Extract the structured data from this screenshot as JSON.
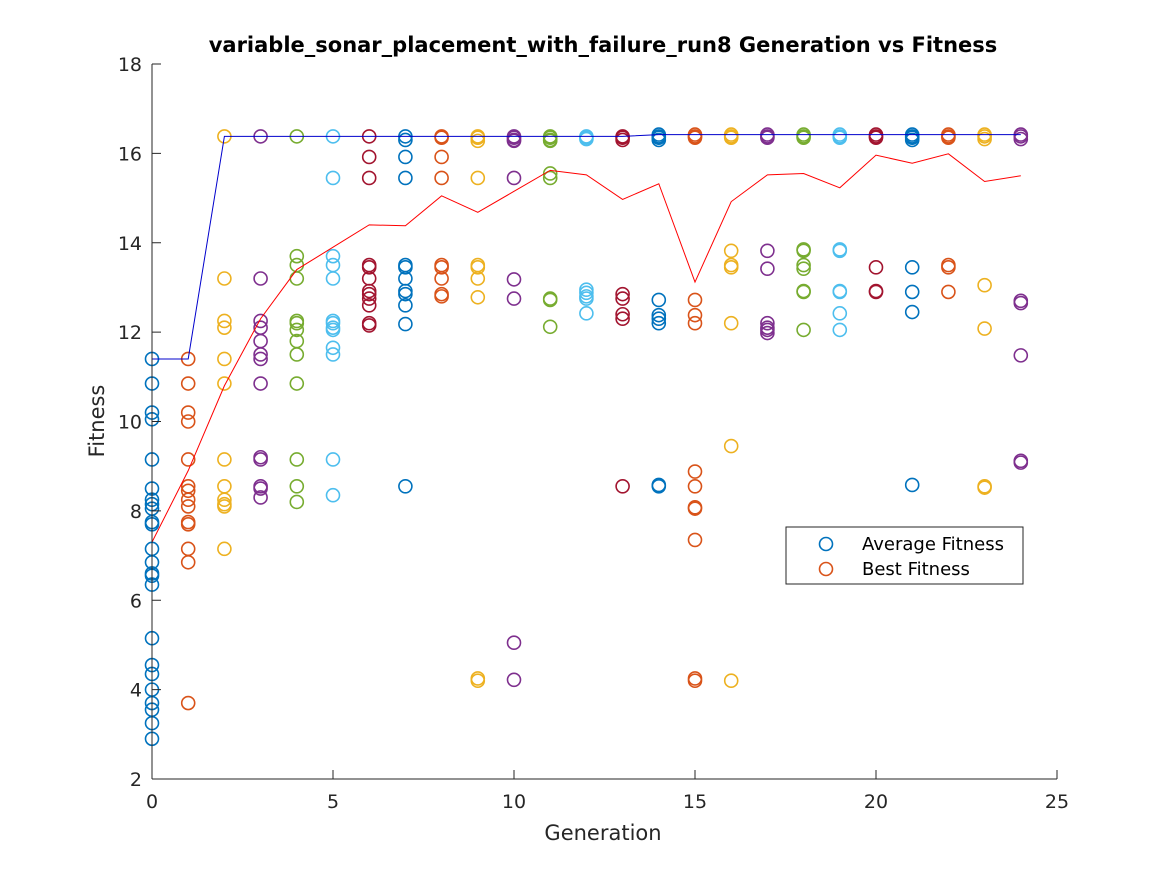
{
  "chart_data": {
    "type": "scatter",
    "title": "variable_sonar_placement_with_failure_run8 Generation vs Fitness",
    "xlabel": "Generation",
    "ylabel": "Fitness",
    "xlim": [
      0,
      25
    ],
    "ylim": [
      2,
      18
    ],
    "xticks": [
      0,
      5,
      10,
      15,
      20,
      25
    ],
    "yticks": [
      2,
      4,
      6,
      8,
      10,
      12,
      14,
      16,
      18
    ],
    "grid": false,
    "legend_position": "right",
    "legend": [
      {
        "label": "Average Fitness",
        "color": "#0072BD"
      },
      {
        "label": "Best Fitness",
        "color": "#D95319"
      }
    ],
    "generation_colors": [
      "#0072BD",
      "#D95319",
      "#EDB120",
      "#7E2F8E",
      "#77AC30",
      "#4DBEEE",
      "#A2142F"
    ],
    "population": [
      {
        "generation": 0,
        "fitness": [
          11.4,
          10.85,
          10.2,
          10.05,
          9.15,
          8.5,
          8.25,
          8.15,
          8.05,
          7.75,
          7.7,
          7.15,
          6.85,
          6.6,
          6.55,
          6.35,
          5.15,
          4.55,
          4.35,
          4.0,
          3.7,
          3.55,
          3.25,
          2.9
        ]
      },
      {
        "generation": 1,
        "fitness": [
          11.4,
          10.85,
          10.2,
          10.0,
          9.15,
          8.55,
          8.45,
          8.25,
          8.1,
          7.75,
          7.7,
          7.15,
          6.85,
          3.7
        ]
      },
      {
        "generation": 2,
        "fitness": [
          16.38,
          13.2,
          12.25,
          12.1,
          11.4,
          10.85,
          9.15,
          8.55,
          8.25,
          8.15,
          8.1,
          7.15
        ]
      },
      {
        "generation": 3,
        "fitness": [
          16.38,
          13.2,
          12.25,
          12.1,
          11.8,
          11.5,
          11.4,
          10.85,
          9.2,
          9.15,
          8.55,
          8.5,
          8.3
        ]
      },
      {
        "generation": 4,
        "fitness": [
          16.38,
          13.7,
          13.5,
          13.2,
          12.25,
          12.2,
          12.05,
          11.8,
          11.5,
          10.85,
          9.15,
          8.55,
          8.2
        ]
      },
      {
        "generation": 5,
        "fitness": [
          16.38,
          15.45,
          13.7,
          13.5,
          13.2,
          12.25,
          12.2,
          12.1,
          12.05,
          11.65,
          11.5,
          9.15,
          8.35
        ]
      },
      {
        "generation": 6,
        "fitness": [
          16.38,
          15.92,
          15.45,
          13.5,
          13.45,
          13.2,
          12.92,
          12.85,
          12.75,
          12.6,
          12.2,
          12.15
        ]
      },
      {
        "generation": 7,
        "fitness": [
          16.38,
          16.3,
          15.92,
          15.45,
          13.5,
          13.45,
          13.2,
          12.92,
          12.85,
          12.6,
          12.18,
          8.55
        ]
      },
      {
        "generation": 8,
        "fitness": [
          16.38,
          16.35,
          15.92,
          15.45,
          13.5,
          13.45,
          13.2,
          12.85,
          12.8
        ]
      },
      {
        "generation": 9,
        "fitness": [
          16.38,
          16.35,
          16.28,
          15.45,
          13.5,
          13.45,
          13.2,
          12.78,
          4.25,
          4.2
        ]
      },
      {
        "generation": 10,
        "fitness": [
          16.38,
          16.35,
          16.3,
          16.28,
          15.45,
          13.18,
          12.75,
          5.05,
          4.22
        ]
      },
      {
        "generation": 11,
        "fitness": [
          16.38,
          16.35,
          16.3,
          16.28,
          15.55,
          15.45,
          12.75,
          12.72,
          12.12
        ]
      },
      {
        "generation": 12,
        "fitness": [
          16.38,
          16.35,
          16.32,
          12.95,
          12.88,
          12.8,
          12.75,
          12.42
        ]
      },
      {
        "generation": 13,
        "fitness": [
          16.38,
          16.35,
          16.3,
          12.85,
          12.75,
          12.4,
          12.3,
          8.55
        ]
      },
      {
        "generation": 14,
        "fitness": [
          16.42,
          16.38,
          16.35,
          16.3,
          12.72,
          12.38,
          12.3,
          12.2,
          8.58,
          8.55
        ]
      },
      {
        "generation": 15,
        "fitness": [
          16.42,
          16.38,
          16.35,
          12.72,
          12.38,
          12.2,
          8.88,
          8.55,
          8.08,
          8.05,
          7.35,
          4.25,
          4.2
        ]
      },
      {
        "generation": 16,
        "fitness": [
          16.42,
          16.38,
          16.35,
          13.82,
          13.5,
          13.45,
          12.2,
          9.45,
          4.2
        ]
      },
      {
        "generation": 17,
        "fitness": [
          16.42,
          16.38,
          16.35,
          13.82,
          13.42,
          12.2,
          12.1,
          12.05,
          11.98
        ]
      },
      {
        "generation": 18,
        "fitness": [
          16.42,
          16.38,
          16.35,
          13.85,
          13.82,
          13.5,
          13.42,
          12.92,
          12.9,
          12.05
        ]
      },
      {
        "generation": 19,
        "fitness": [
          16.42,
          16.38,
          16.35,
          13.85,
          13.82,
          12.92,
          12.9,
          12.42,
          12.05
        ]
      },
      {
        "generation": 20,
        "fitness": [
          16.42,
          16.38,
          16.35,
          13.45,
          12.92,
          12.9
        ]
      },
      {
        "generation": 21,
        "fitness": [
          16.42,
          16.38,
          16.35,
          16.3,
          13.45,
          12.9,
          12.45,
          8.58
        ]
      },
      {
        "generation": 22,
        "fitness": [
          16.42,
          16.38,
          16.35,
          13.5,
          13.45,
          12.9
        ]
      },
      {
        "generation": 23,
        "fitness": [
          16.42,
          16.38,
          16.32,
          13.05,
          12.08,
          8.55,
          8.52
        ]
      },
      {
        "generation": 24,
        "fitness": [
          16.42,
          16.38,
          16.32,
          12.7,
          12.65,
          11.48,
          9.12,
          9.08
        ]
      }
    ],
    "series": [
      {
        "name": "Average Fitness",
        "color": "#FF0000",
        "x": [
          0,
          1,
          2,
          3,
          4,
          5,
          6,
          7,
          8,
          9,
          10,
          11,
          12,
          13,
          14,
          15,
          16,
          17,
          18,
          19,
          20,
          21,
          22,
          23,
          24
        ],
        "y": [
          7.3,
          8.9,
          10.8,
          12.3,
          13.4,
          13.9,
          14.4,
          14.38,
          15.05,
          14.68,
          15.15,
          15.62,
          15.52,
          14.97,
          15.32,
          13.12,
          14.92,
          15.52,
          15.55,
          15.23,
          15.96,
          15.78,
          15.99,
          15.37,
          15.5
        ]
      },
      {
        "name": "Best Fitness",
        "color": "#0000CC",
        "x": [
          0,
          1,
          2,
          3,
          4,
          5,
          6,
          7,
          8,
          9,
          10,
          11,
          12,
          13,
          14,
          15,
          16,
          17,
          18,
          19,
          20,
          21,
          22,
          23,
          24
        ],
        "y": [
          11.4,
          11.4,
          16.38,
          16.38,
          16.38,
          16.38,
          16.38,
          16.38,
          16.38,
          16.38,
          16.38,
          16.38,
          16.38,
          16.38,
          16.42,
          16.42,
          16.42,
          16.42,
          16.42,
          16.42,
          16.42,
          16.42,
          16.42,
          16.42,
          16.42
        ]
      }
    ]
  }
}
